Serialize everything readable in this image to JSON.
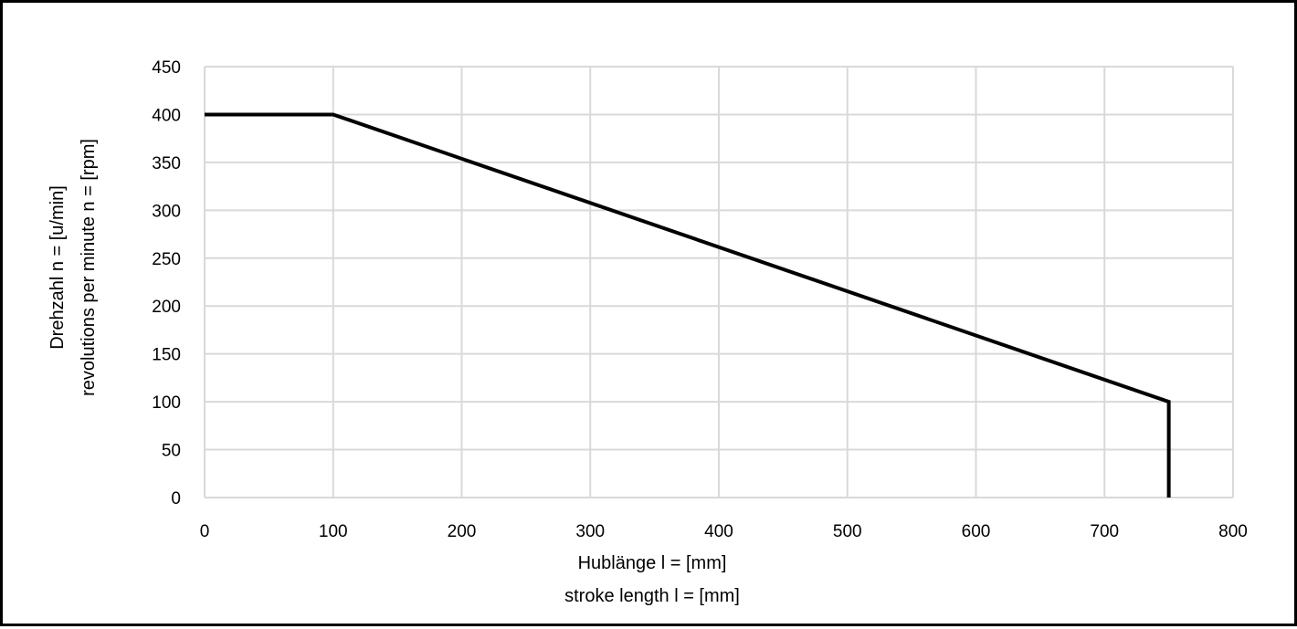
{
  "chart_data": {
    "type": "line",
    "title": "",
    "xlabel": [
      "Hublänge l = [mm]",
      "stroke length l = [mm]"
    ],
    "ylabel": [
      "Drehzahl n = [u/min]",
      "revolutions per minute n = [rpm]"
    ],
    "xlim": [
      0,
      800
    ],
    "ylim": [
      0,
      450
    ],
    "xticks": [
      0,
      100,
      200,
      300,
      400,
      500,
      600,
      700,
      800
    ],
    "yticks": [
      0,
      50,
      100,
      150,
      200,
      250,
      300,
      350,
      400,
      450
    ],
    "grid": true,
    "legend": "none",
    "series": [
      {
        "color": "#000000",
        "points": [
          [
            0,
            400
          ],
          [
            100,
            400
          ],
          [
            750,
            100
          ],
          [
            750,
            0
          ]
        ]
      }
    ]
  }
}
